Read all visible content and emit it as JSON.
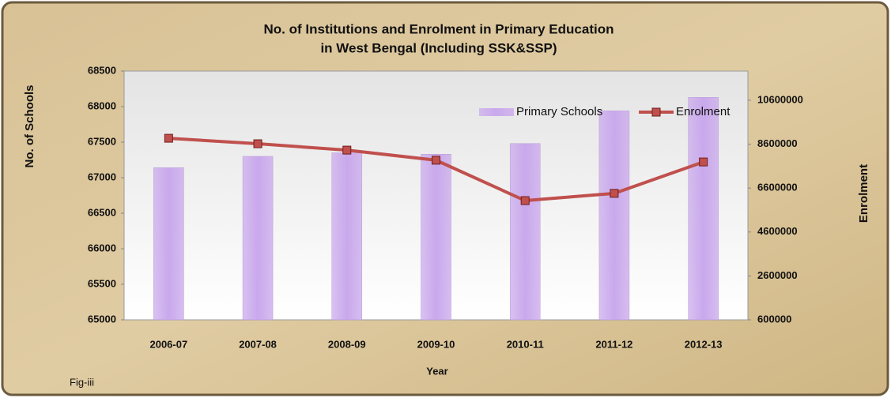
{
  "chart_data": {
    "type": "bar_line",
    "title": "No. of Institutions and Enrolment in Primary Education",
    "subtitle": "in West Bengal (Including SSK&SSP)",
    "x_label": "Year",
    "y_label": "No.  of  Schools",
    "y2_label": "Enrolment",
    "annotation": "Fig-iii",
    "categories": [
      "2006-07",
      "2007-08",
      "2008-09",
      "2009-10",
      "2010-11",
      "2011-12",
      "2012-13"
    ],
    "series": [
      {
        "name": "Primary Schools",
        "type": "bar",
        "color": "#c9a8ec",
        "values": [
          67140,
          67300,
          67350,
          67330,
          67480,
          67940,
          68130
        ]
      },
      {
        "name": "Enrolment",
        "type": "line",
        "axis": "y2",
        "color": "#c0504d",
        "values": [
          8870000,
          8620000,
          8330000,
          7870000,
          6030000,
          6360000,
          7790000
        ]
      }
    ],
    "ylim": [
      65000,
      68500
    ],
    "yticks": [
      65000,
      65500,
      66000,
      66500,
      67000,
      67500,
      68000,
      68500
    ],
    "y2lim": [
      600000,
      11930000
    ],
    "y2ticks": [
      600000,
      2600000,
      4600000,
      6600000,
      8600000,
      10600000
    ],
    "legend": "upper right"
  }
}
